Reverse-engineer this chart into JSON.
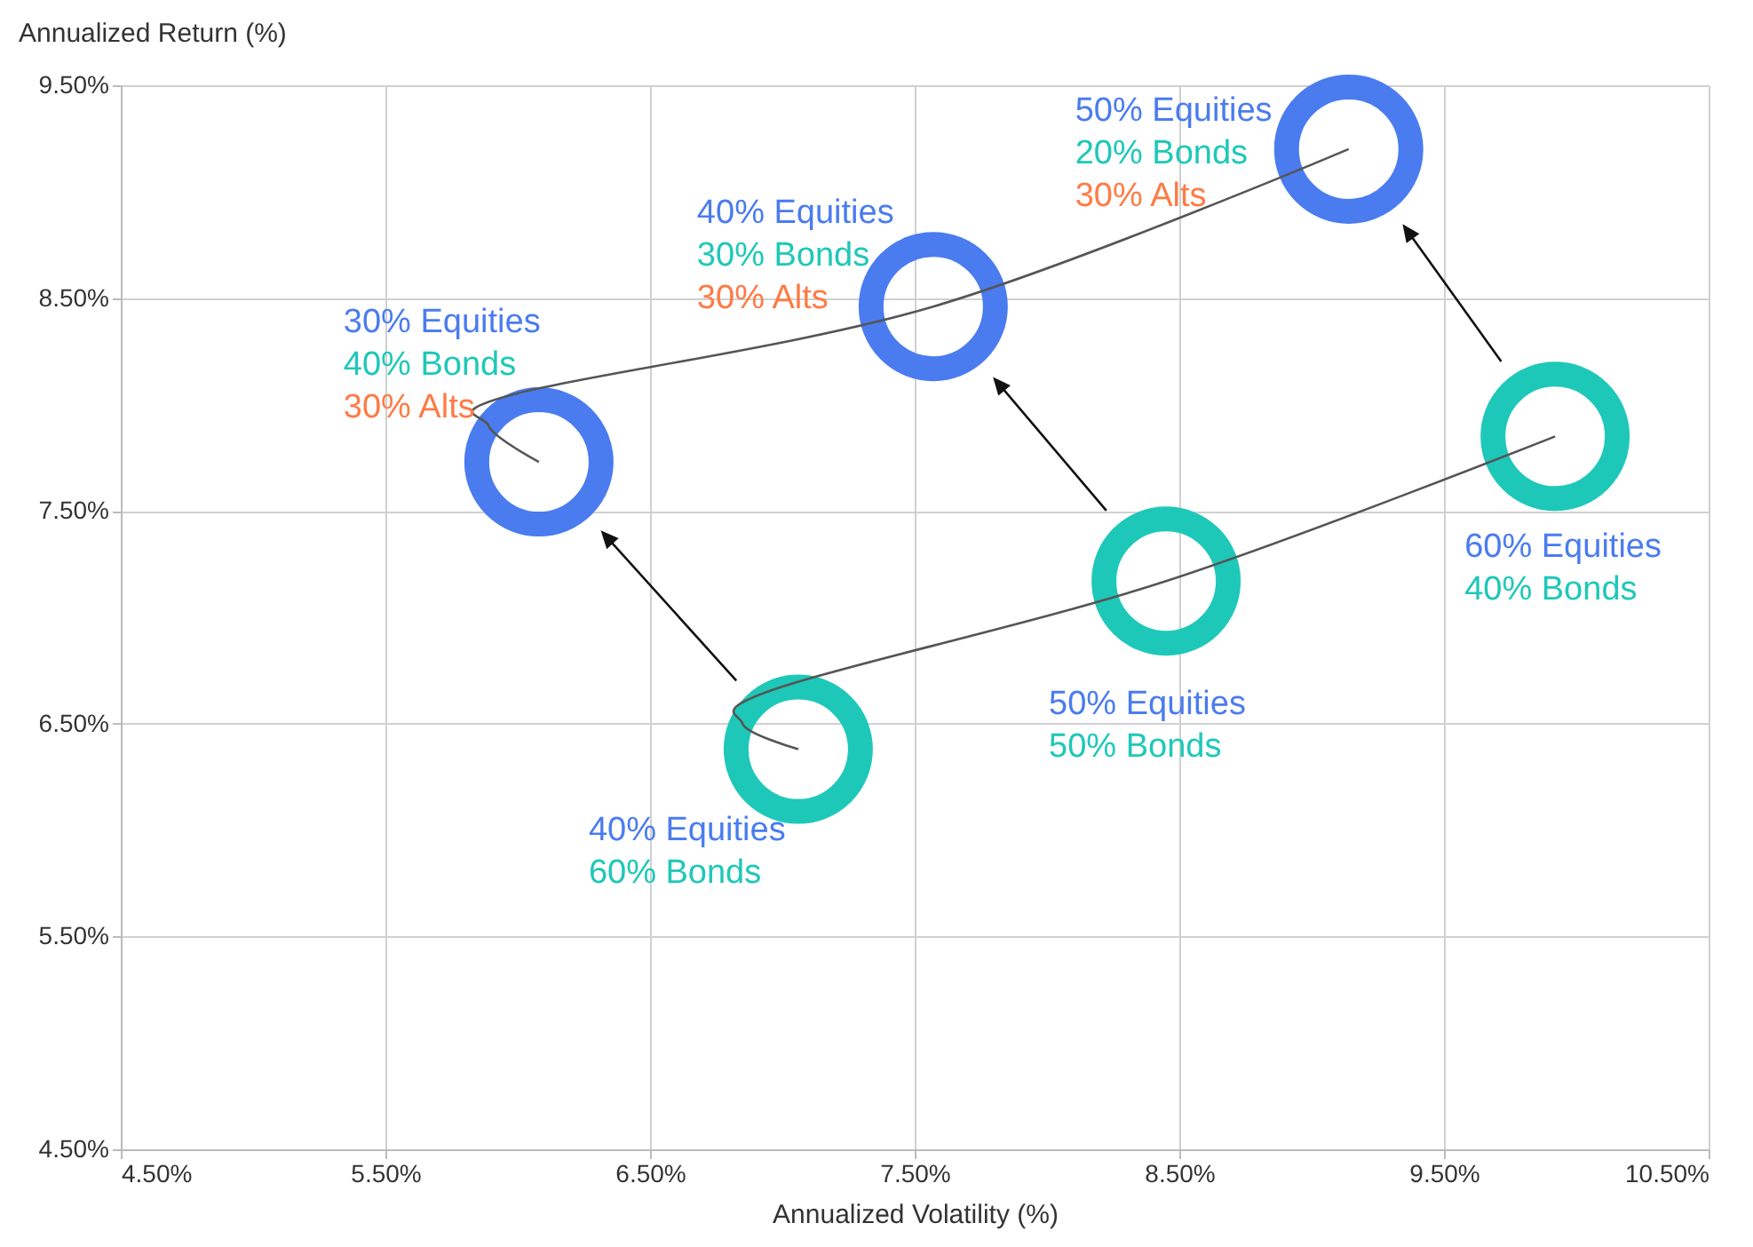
{
  "chart_data": {
    "type": "scatter",
    "xlabel": "Annualized Volatility (%)",
    "ylabel": "Annualized Return (%)",
    "xlim": [
      4.5,
      10.5
    ],
    "ylim": [
      4.5,
      9.5
    ],
    "xticks": [
      {
        "value": 4.5,
        "label": "4.50%"
      },
      {
        "value": 5.5,
        "label": "5.50%"
      },
      {
        "value": 6.5,
        "label": "6.50%"
      },
      {
        "value": 7.5,
        "label": "7.50%"
      },
      {
        "value": 8.5,
        "label": "8.50%"
      },
      {
        "value": 9.5,
        "label": "9.50%"
      },
      {
        "value": 10.5,
        "label": "10.50%"
      }
    ],
    "yticks": [
      {
        "value": 4.5,
        "label": "4.50%"
      },
      {
        "value": 5.5,
        "label": "5.50%"
      },
      {
        "value": 6.5,
        "label": "6.50%"
      },
      {
        "value": 7.5,
        "label": "7.50%"
      },
      {
        "value": 8.5,
        "label": "8.50%"
      },
      {
        "value": 9.5,
        "label": "9.50%"
      }
    ],
    "grid": true,
    "series": [
      {
        "x": [
          6.08,
          7.57,
          9.14,
          7.06,
          8.45,
          9.92
        ],
        "values": [
          7.73,
          8.46,
          9.2,
          6.38,
          7.17,
          7.85
        ],
        "colors": [
          "#4a7cf0",
          "#4a7cf0",
          "#4a7cf0",
          "#1ec8b8",
          "#1ec8b8",
          "#1ec8b8"
        ]
      },
      {
        "type": "line",
        "x": [
          7.06,
          6.85,
          6.99,
          8.45,
          9.92
        ],
        "values": [
          6.38,
          6.5,
          6.67,
          7.17,
          7.85
        ],
        "color": "#555555"
      },
      {
        "type": "line",
        "x": [
          6.08,
          5.89,
          5.99,
          7.57,
          9.14
        ],
        "values": [
          7.73,
          7.9,
          8.05,
          8.46,
          9.2
        ],
        "color": "#555555"
      }
    ],
    "annotations": [
      "30% Equities\n40% Bonds\n30% Alts",
      "40% Equities\n30% Bonds\n30% Alts",
      "50% Equities\n20% Bonds\n30% Alts",
      "40% Equities\n60% Bonds",
      "50% Equities\n50% Bonds",
      "60% Equities\n40% Bonds"
    ]
  }
}
